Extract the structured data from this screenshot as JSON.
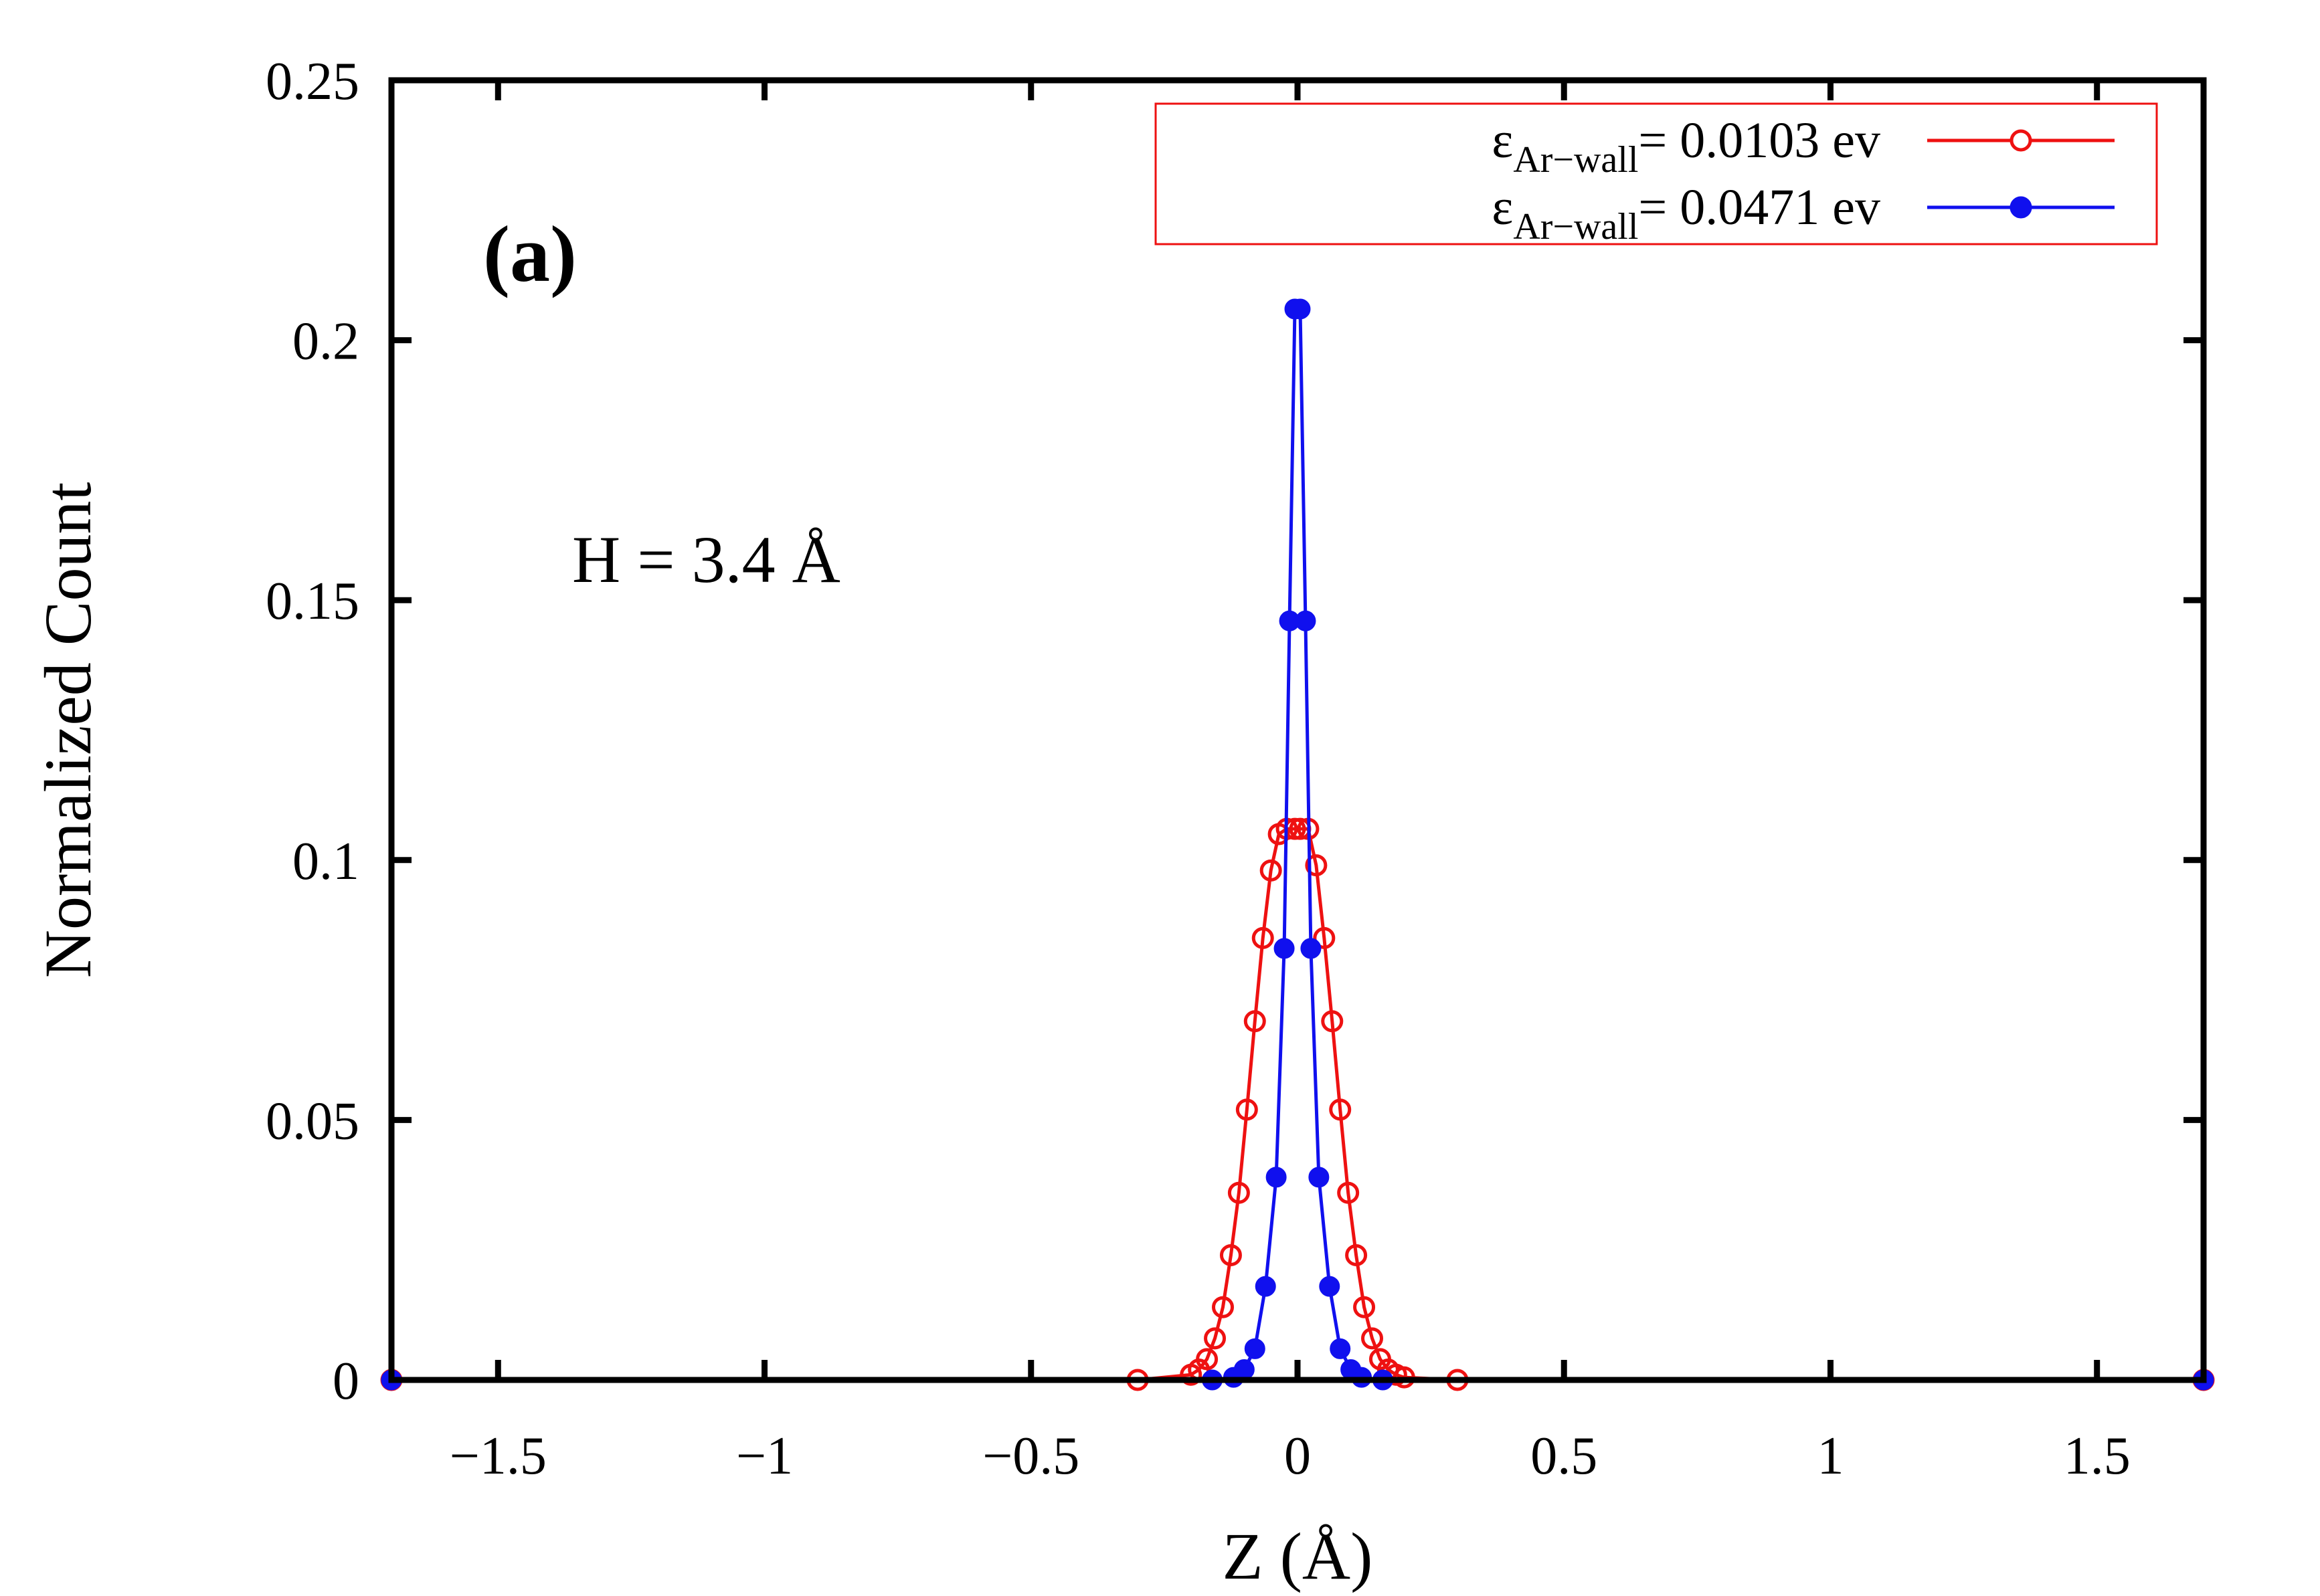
{
  "chart_data": {
    "type": "line",
    "title": "",
    "panel_label": "(a)",
    "annotation": "H = 3.4 Å",
    "xlabel": "Z (Å)",
    "ylabel": "Normalized Count",
    "xlim": [
      -1.7,
      1.7
    ],
    "ylim": [
      0,
      0.25
    ],
    "xticks": [
      -1.5,
      -1,
      -0.5,
      0,
      0.5,
      1,
      1.5
    ],
    "xtick_labels": [
      "−1.5",
      "−1",
      "−0.5",
      "0",
      "0.5",
      "1",
      "1.5"
    ],
    "yticks": [
      0,
      0.05,
      0.1,
      0.15,
      0.2,
      0.25
    ],
    "ytick_labels": [
      "0",
      "0.05",
      "0.1",
      "0.15",
      "0.2",
      "0.25"
    ],
    "grid": false,
    "legend_position": "top-right",
    "legend_color": "#ee1111",
    "series": [
      {
        "name": "ε_Ar−wall = 0.0103 ev",
        "label_symbol": "ε",
        "label_sub": "Ar−wall",
        "label_value": "= 0.0103 ev",
        "color": "#ee1111",
        "marker": "open-circle",
        "x": [
          -1.7,
          -0.3,
          -0.2,
          -0.185,
          -0.17,
          -0.155,
          -0.14,
          -0.125,
          -0.11,
          -0.095,
          -0.08,
          -0.065,
          -0.05,
          -0.035,
          -0.02,
          -0.005,
          0.005,
          0.02,
          0.035,
          0.05,
          0.065,
          0.08,
          0.095,
          0.11,
          0.125,
          0.14,
          0.155,
          0.17,
          0.185,
          0.2,
          0.3,
          1.7
        ],
        "y": [
          0,
          0,
          0.001,
          0.002,
          0.004,
          0.008,
          0.014,
          0.024,
          0.036,
          0.052,
          0.069,
          0.085,
          0.098,
          0.105,
          0.106,
          0.106,
          0.106,
          0.106,
          0.099,
          0.085,
          0.069,
          0.052,
          0.036,
          0.024,
          0.014,
          0.008,
          0.004,
          0.002,
          0.001,
          0.0005,
          0,
          0
        ]
      },
      {
        "name": "ε_Ar−wall = 0.0471 ev",
        "label_symbol": "ε",
        "label_sub": "Ar−wall",
        "label_value": "= 0.0471 ev",
        "color": "#1010ee",
        "marker": "filled-circle",
        "x": [
          -1.7,
          -0.16,
          -0.12,
          -0.1,
          -0.08,
          -0.06,
          -0.04,
          -0.025,
          -0.015,
          -0.005,
          0.005,
          0.015,
          0.025,
          0.04,
          0.06,
          0.08,
          0.1,
          0.12,
          0.16,
          1.7
        ],
        "y": [
          0,
          0,
          0.0005,
          0.002,
          0.006,
          0.018,
          0.039,
          0.083,
          0.146,
          0.206,
          0.206,
          0.146,
          0.083,
          0.039,
          0.018,
          0.006,
          0.002,
          0.0005,
          0,
          0
        ]
      }
    ]
  }
}
